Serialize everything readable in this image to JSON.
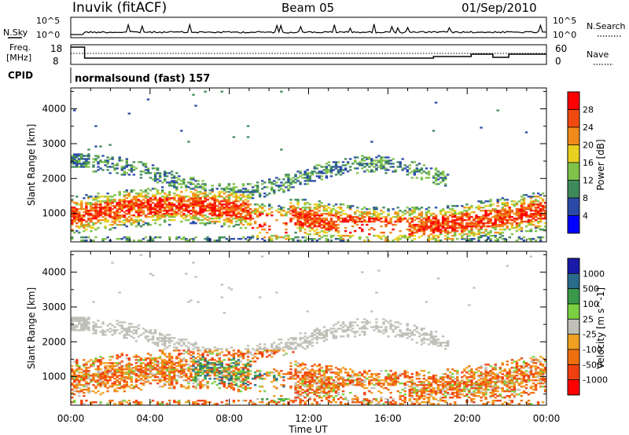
{
  "header": {
    "station": "Inuvik (fitACF)",
    "beam": "Beam 05",
    "date": "01/Sep/2010"
  },
  "noise_panel": {
    "left_label": "N.Sky",
    "right_label": "N.Search",
    "left_ticks": [
      "10^5",
      "10^0"
    ],
    "right_ticks": [
      "10^5",
      "10^0"
    ]
  },
  "freq_panel": {
    "left_label_line1": "Freq.",
    "left_label_line2": "[MHz]",
    "right_label": "Nave",
    "left_ticks": [
      "18",
      "8"
    ],
    "right_ticks": [
      "60",
      "0"
    ]
  },
  "cpid": {
    "label": "CPID",
    "text": "normalsound (fast) 157"
  },
  "x_axis": {
    "title": "Time UT",
    "ticks": [
      "00:00",
      "04:00",
      "08:00",
      "12:00",
      "16:00",
      "20:00",
      "00:00"
    ],
    "range_hours": [
      0,
      24
    ]
  },
  "chart_data": [
    {
      "type": "heatmap",
      "title": "",
      "xlabel": "Time UT",
      "ylabel": "Slant Range [km]",
      "xlim": [
        0,
        24
      ],
      "ylim": [
        180,
        4600
      ],
      "yticks": [
        1000,
        2000,
        3000,
        4000
      ],
      "colorbar": {
        "label": "Power [dB]",
        "ticks": [
          4,
          8,
          12,
          16,
          20,
          24,
          28
        ],
        "range": [
          0,
          32
        ]
      },
      "colors": [
        "#0000ff",
        "#2a4aa8",
        "#3f8a5a",
        "#7fc24a",
        "#e8d020",
        "#f08a1a",
        "#f04a10",
        "#ff0000"
      ]
    },
    {
      "type": "heatmap",
      "title": "",
      "xlabel": "Time UT",
      "ylabel": "Slant Range [km]",
      "xlim": [
        0,
        24
      ],
      "ylim": [
        180,
        4600
      ],
      "yticks": [
        1000,
        2000,
        3000,
        4000
      ],
      "colorbar": {
        "label": "Velocity [m s^-1]",
        "ticks": [
          "1000",
          "500",
          "100",
          "25",
          "-25",
          "-100",
          "-500",
          "-1000"
        ]
      },
      "colors": [
        "#1a1aa8",
        "#2a6a8a",
        "#3a9a4a",
        "#7ad040",
        "#c0c0b8",
        "#f0a020",
        "#f07010",
        "#f04010",
        "#ff0000"
      ]
    }
  ]
}
